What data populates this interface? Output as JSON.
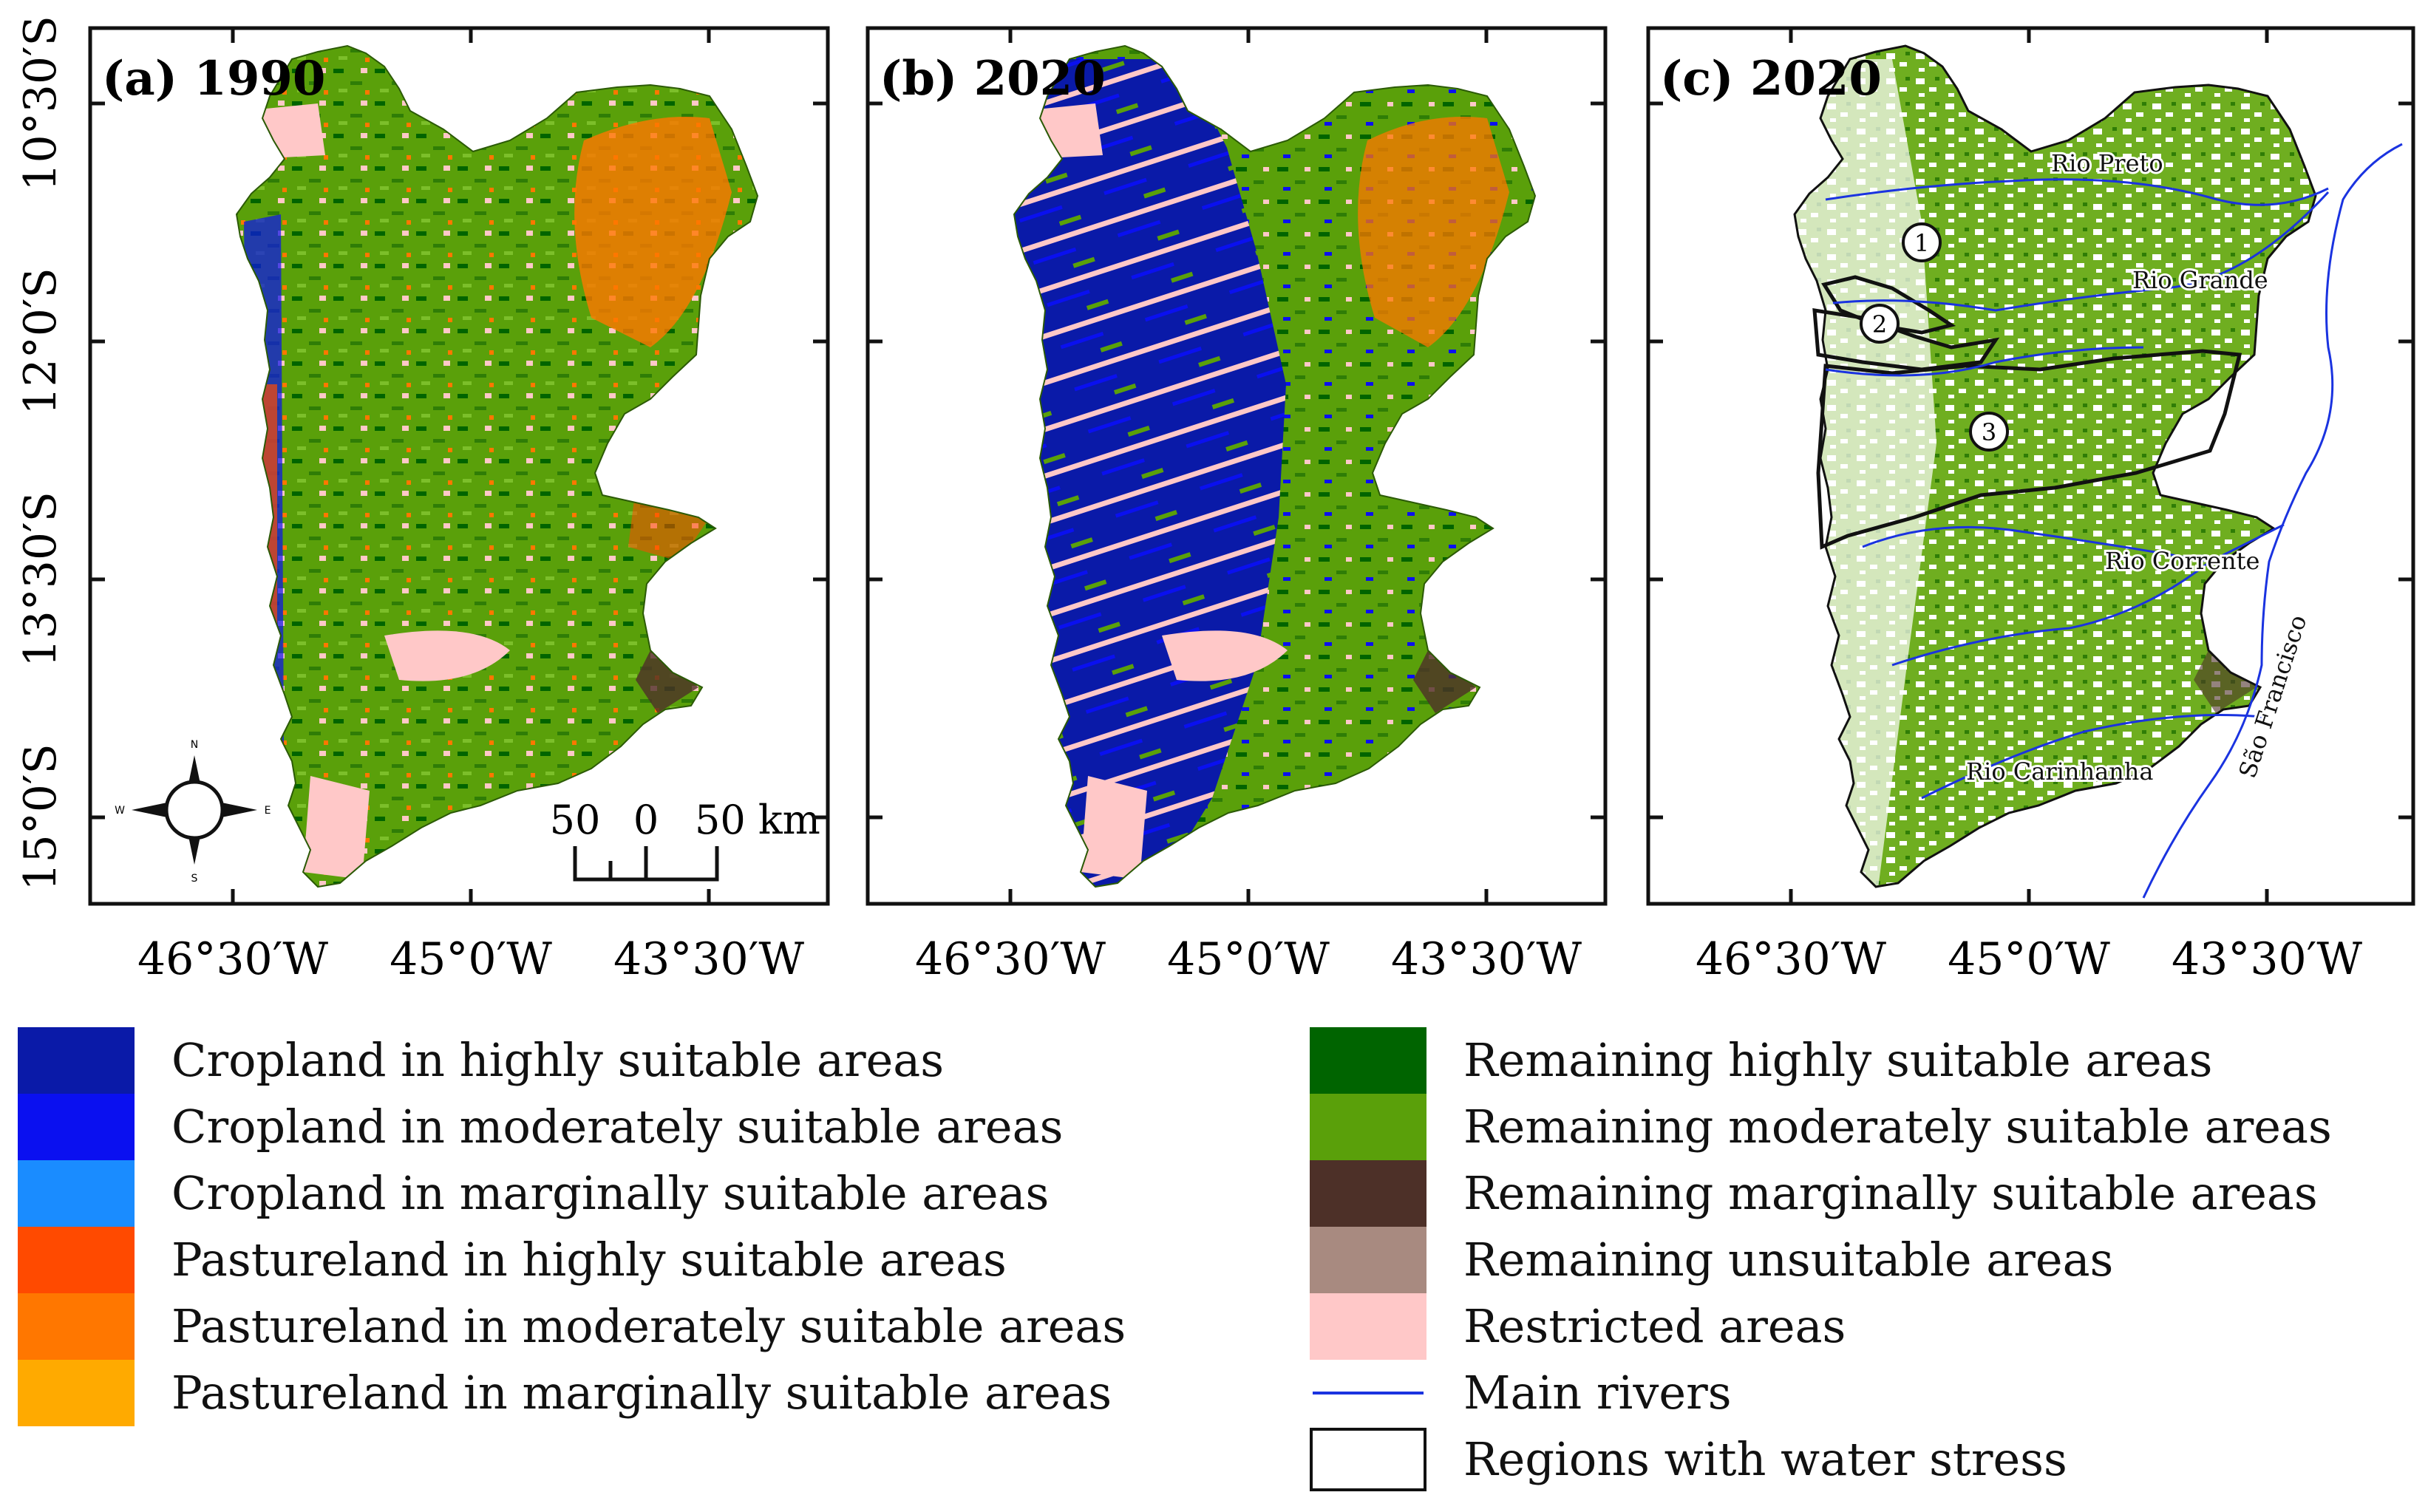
{
  "panels": [
    {
      "label": "(a) 1990"
    },
    {
      "label": "(b) 2020"
    },
    {
      "label": "(c) 2020"
    }
  ],
  "axes": {
    "lat_ticks": [
      "10°30′S",
      "12°0′S",
      "13°30′S",
      "15°0′S"
    ],
    "lon_ticks": [
      "46°30′W",
      "45°0′W",
      "43°30′W"
    ]
  },
  "compass": {
    "n": "N",
    "s": "S",
    "e": "E",
    "w": "W"
  },
  "scale_bar": {
    "labels": [
      "50",
      "0",
      "50 km"
    ]
  },
  "rivers": {
    "rio_preto": "Rio Preto",
    "rio_grande": "Rio Grande",
    "rio_corrente": "Rio Corrente",
    "rio_carinhanha": "Rio Carinhanha",
    "sao_francisco": "São Francisco"
  },
  "stress_regions": [
    "1",
    "2",
    "3"
  ],
  "colors": {
    "crop_high": "#0a1aa8",
    "crop_mod": "#0a10f0",
    "crop_marg": "#1a8cff",
    "past_high": "#ff4a00",
    "past_mod": "#ff7700",
    "past_marg": "#ffaa00",
    "rem_high": "#006400",
    "rem_mod": "#5aa00a",
    "rem_marg": "#4d3028",
    "rem_unsuit": "#a88a80",
    "restricted": "#ffc8c8",
    "river": "#1a33e0"
  },
  "legend": {
    "left": [
      {
        "label": "Cropland in highly suitable areas",
        "color": "#0a1aa8"
      },
      {
        "label": "Cropland in moderately suitable areas",
        "color": "#0a10f0"
      },
      {
        "label": "Cropland in marginally suitable areas",
        "color": "#1a8cff"
      },
      {
        "label": "Pastureland in highly suitable areas",
        "color": "#ff4a00"
      },
      {
        "label": "Pastureland in moderately suitable areas",
        "color": "#ff7700"
      },
      {
        "label": "Pastureland in marginally suitable areas",
        "color": "#ffaa00"
      }
    ],
    "right": [
      {
        "label": "Remaining highly suitable areas",
        "color": "#006400"
      },
      {
        "label": "Remaining moderately suitable areas",
        "color": "#5aa00a"
      },
      {
        "label": "Remaining marginally suitable areas",
        "color": "#4d3028"
      },
      {
        "label": "Remaining unsuitable areas",
        "color": "#a88a80"
      },
      {
        "label": "Restricted areas",
        "color": "#ffc8c8"
      },
      {
        "label": "Main rivers",
        "color": "#1a33e0"
      },
      {
        "label": "Regions with water stress",
        "color": "#ffffff"
      }
    ]
  }
}
